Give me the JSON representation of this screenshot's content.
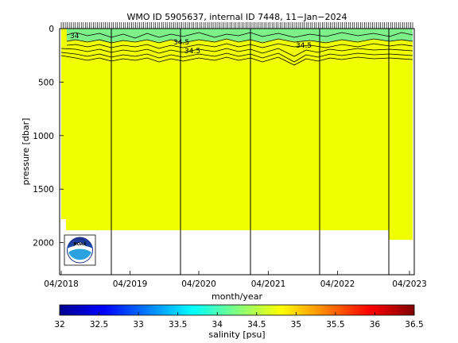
{
  "chart_data": {
    "type": "heatmap",
    "title": "WMO ID 5905637, internal ID 7448, 11−Jan−2024",
    "xlabel": "month/year",
    "ylabel": "pressure [dbar]",
    "colorbar_label": "salinity [psu]",
    "x_ticks": [
      "04/2018",
      "04/2019",
      "04/2020",
      "04/2021",
      "04/2022",
      "04/2023"
    ],
    "y_ticks": [
      "0",
      "500",
      "1000",
      "1500",
      "2000"
    ],
    "y_tick_values": [
      0,
      500,
      1000,
      1500,
      2000
    ],
    "ylim": [
      2300,
      0
    ],
    "y_reversed": true,
    "colorbar_ticks": [
      "32",
      "32.5",
      "33",
      "33.5",
      "34",
      "34.5",
      "35",
      "35.5",
      "36",
      "36.5"
    ],
    "colorbar_range": [
      32,
      36.5
    ],
    "colormap": "jet",
    "profile_count": 176,
    "colors": {
      "deep_salinity": "#f0ff00",
      "surface_salinity": "#7df08a",
      "contour_line": "#000000",
      "year_line": "#000000"
    },
    "contour_labels": [
      "34",
      "34.5",
      "34.5",
      "34.5"
    ],
    "data_extent": [
      {
        "from": "04/2018",
        "to": "06/2018",
        "max_pressure": 1800
      },
      {
        "from": "06/2018",
        "to": "12/2022",
        "max_pressure": 1880
      },
      {
        "from": "12/2022",
        "to": "04/2023",
        "max_pressure": 1980
      }
    ],
    "logo": "NOAA"
  }
}
